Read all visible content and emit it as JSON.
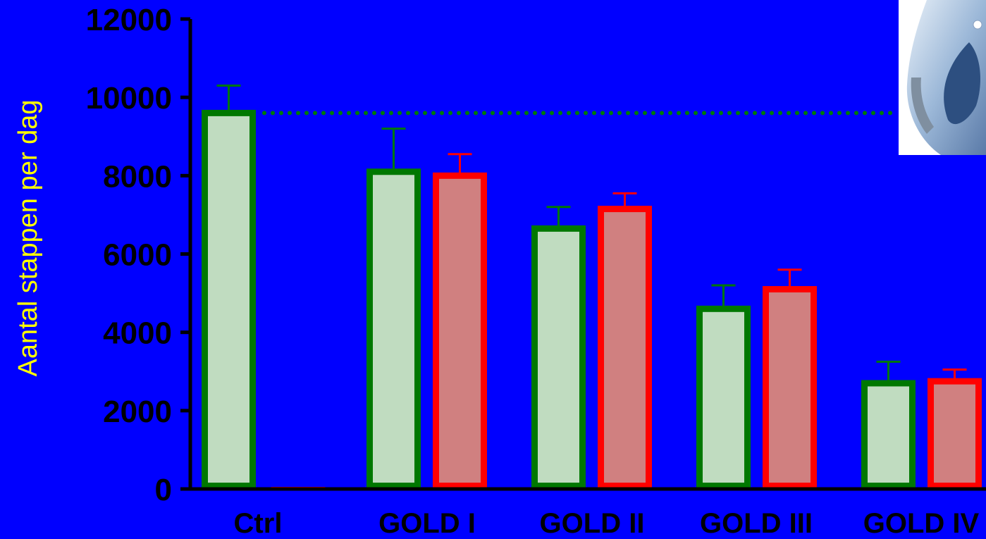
{
  "chart_data": {
    "type": "bar",
    "title": "",
    "xlabel": "",
    "ylabel": "Aantal stappen per dag",
    "categories": [
      "Ctrl",
      "GOLD I",
      "GOLD II",
      "GOLD III",
      "GOLD IV"
    ],
    "ylim": [
      0,
      12000
    ],
    "yticks": [
      "0",
      "2000",
      "4000",
      "6000",
      "8000",
      "10000",
      "12000"
    ],
    "grid": false,
    "legend": "none",
    "reference_line": {
      "value": 9600,
      "style": "dotted",
      "color": "#007a00"
    },
    "series": [
      {
        "color_fill": "#c0dcc0",
        "color_edge": "#007800",
        "values": [
          9600,
          8100,
          6650,
          4600,
          2700
        ],
        "error": [
          700,
          1100,
          550,
          600,
          550
        ]
      },
      {
        "color_fill": "#d08080",
        "color_edge": "#ff0000",
        "values": [
          50,
          8000,
          7150,
          5100,
          2750
        ],
        "error": [
          0,
          550,
          400,
          500,
          300
        ]
      }
    ]
  },
  "colors": {
    "background": "#0000ff",
    "axis": "#000000",
    "ylabel": "#ffff00"
  },
  "image": {
    "icon": "pedometer-photo"
  }
}
